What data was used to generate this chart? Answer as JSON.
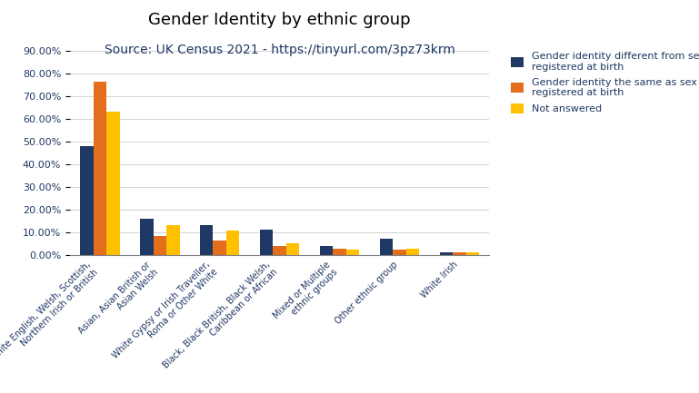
{
  "title": "Gender Identity by ethnic group",
  "subtitle": "Source: UK Census 2021 - https://tinyurl.com/3pz73krm",
  "categories": [
    "White English, Welsh, Scottish,\nNorthern Irish or British",
    "Asian, Asian British or\nAsian Welsh",
    "White Gypsy or Irish Traveller,\nRoma or Other White",
    "Black, Black British, Black Welsh,\nCaribbean or African",
    "Mixed or Multiple\nethnic groups",
    "Other ethnic group",
    "White Irish"
  ],
  "series": [
    {
      "name": "Gender identity different from sex\nregistered at birth",
      "color": "#1f3864",
      "values": [
        0.48,
        0.16,
        0.135,
        0.115,
        0.04,
        0.075,
        0.015
      ]
    },
    {
      "name": "Gender identity the same as sex\nregistered at birth",
      "color": "#e36e1b",
      "values": [
        0.765,
        0.085,
        0.065,
        0.04,
        0.03,
        0.025,
        0.015
      ]
    },
    {
      "name": "Not answered",
      "color": "#ffc000",
      "values": [
        0.635,
        0.135,
        0.11,
        0.055,
        0.025,
        0.03,
        0.015
      ]
    }
  ],
  "ylim": [
    0,
    0.9001
  ],
  "yticks": [
    0.0,
    0.1,
    0.2,
    0.3,
    0.4,
    0.5,
    0.6,
    0.7,
    0.8,
    0.9
  ],
  "background_color": "#ffffff",
  "title_color": "#000000",
  "subtitle_color": "#1f3864",
  "title_fontsize": 13,
  "subtitle_fontsize": 10,
  "axis_color": "#1f3864",
  "legend_fontsize": 8,
  "bar_width": 0.22
}
